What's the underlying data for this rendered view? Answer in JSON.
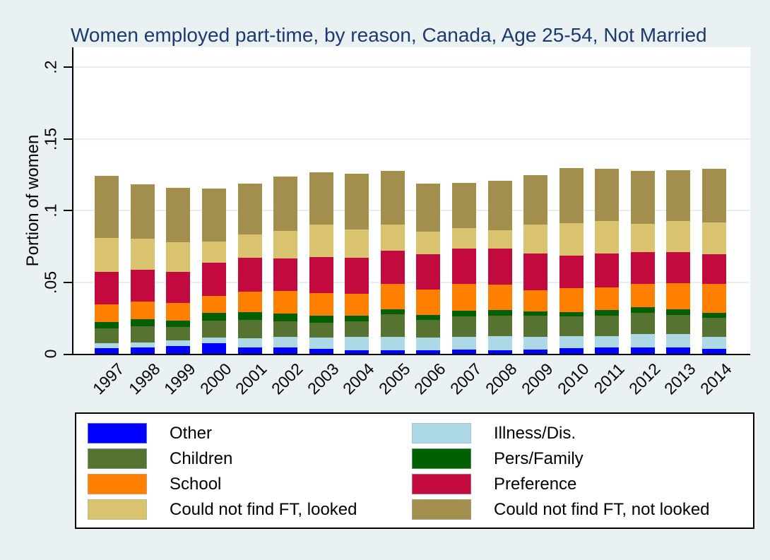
{
  "chart_data": {
    "type": "bar",
    "stacked": true,
    "title": "Women employed part-time, by reason, Canada, Age 25-54, Not Married",
    "xlabel": "",
    "ylabel": "Portion of women",
    "categories": [
      "1997",
      "1998",
      "1999",
      "2000",
      "2001",
      "2002",
      "2003",
      "2004",
      "2005",
      "2006",
      "2007",
      "2008",
      "2009",
      "2010",
      "2011",
      "2012",
      "2013",
      "2014"
    ],
    "y_ticks": [
      0,
      0.05,
      0.1,
      0.15,
      0.2
    ],
    "y_tick_labels": [
      "0",
      ".05",
      ".1",
      ".15",
      ".2"
    ],
    "ylim": [
      0,
      0.2143
    ],
    "grid": true,
    "legend_position": "bottom",
    "series": [
      {
        "name": "Other",
        "color": "#0000ff",
        "values": [
          0.0038,
          0.0046,
          0.0056,
          0.0075,
          0.0043,
          0.0046,
          0.0035,
          0.0026,
          0.0026,
          0.0026,
          0.003,
          0.0026,
          0.003,
          0.0038,
          0.0046,
          0.0043,
          0.0043,
          0.0035
        ]
      },
      {
        "name": "Illness/Dis.",
        "color": "#add8e6",
        "values": [
          0.0038,
          0.0034,
          0.0039,
          0.0037,
          0.0066,
          0.0071,
          0.0077,
          0.0091,
          0.0091,
          0.0086,
          0.0087,
          0.0096,
          0.0087,
          0.0087,
          0.0079,
          0.0094,
          0.0094,
          0.0082
        ]
      },
      {
        "name": "Children",
        "color": "#567331",
        "values": [
          0.0102,
          0.0114,
          0.0092,
          0.012,
          0.0127,
          0.011,
          0.0103,
          0.011,
          0.0159,
          0.0123,
          0.0143,
          0.0143,
          0.0151,
          0.0135,
          0.0143,
          0.0147,
          0.0136,
          0.0134
        ]
      },
      {
        "name": "Pers/Family",
        "color": "#006000",
        "values": [
          0.0046,
          0.0046,
          0.0045,
          0.0054,
          0.0054,
          0.0054,
          0.005,
          0.0038,
          0.0033,
          0.0038,
          0.0041,
          0.0041,
          0.0029,
          0.0029,
          0.0038,
          0.0043,
          0.0036,
          0.0033
        ]
      },
      {
        "name": "School",
        "color": "#ff8000",
        "values": [
          0.0123,
          0.0123,
          0.0123,
          0.0118,
          0.0143,
          0.0156,
          0.0159,
          0.0153,
          0.0178,
          0.0176,
          0.0186,
          0.0176,
          0.0148,
          0.0168,
          0.0159,
          0.0163,
          0.0186,
          0.0206
        ]
      },
      {
        "name": "Preference",
        "color": "#c20a3e",
        "values": [
          0.0227,
          0.0222,
          0.0218,
          0.023,
          0.0239,
          0.023,
          0.0251,
          0.0253,
          0.0235,
          0.0246,
          0.0246,
          0.0254,
          0.0255,
          0.0227,
          0.0235,
          0.0222,
          0.0217,
          0.0205
        ]
      },
      {
        "name": "Could not find FT, looked",
        "color": "#d9c36f",
        "values": [
          0.0233,
          0.0219,
          0.0204,
          0.0151,
          0.0161,
          0.0189,
          0.0226,
          0.0197,
          0.0179,
          0.0156,
          0.0143,
          0.0128,
          0.0201,
          0.023,
          0.0225,
          0.0197,
          0.0213,
          0.0222
        ]
      },
      {
        "name": "Could not find FT, not looked",
        "color": "#a28f4d",
        "values": [
          0.0435,
          0.0381,
          0.038,
          0.0367,
          0.0353,
          0.0382,
          0.0366,
          0.0391,
          0.0375,
          0.0337,
          0.0317,
          0.0343,
          0.0347,
          0.0381,
          0.0367,
          0.037,
          0.0359,
          0.0375
        ]
      }
    ],
    "legend_columns": [
      [
        "Other",
        "Children",
        "School",
        "Could not find FT, looked"
      ],
      [
        "Illness/Dis.",
        "Pers/Family",
        "Preference",
        "Could not find FT, not looked"
      ]
    ]
  },
  "colors": {
    "background": "#e9f1f3",
    "plot_background": "#ffffff",
    "title_text": "#1c3a6e",
    "gridline": "#e4edf0",
    "axis": "#000000"
  }
}
